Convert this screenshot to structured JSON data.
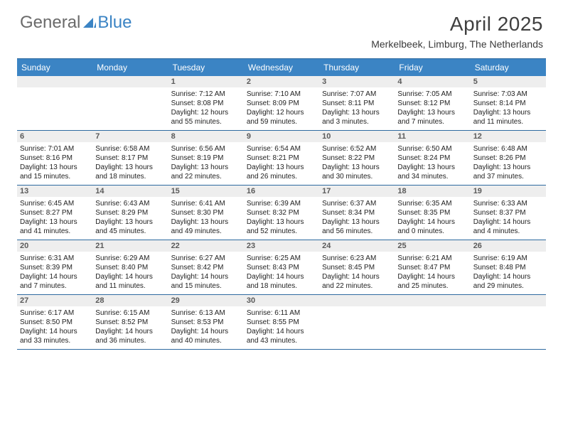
{
  "logo": {
    "general": "General",
    "blue": "Blue"
  },
  "title": "April 2025",
  "location": "Merkelbeek, Limburg, The Netherlands",
  "day_headers": [
    "Sunday",
    "Monday",
    "Tuesday",
    "Wednesday",
    "Thursday",
    "Friday",
    "Saturday"
  ],
  "colors": {
    "header_bg": "#3b84c4",
    "header_text": "#ffffff",
    "daynum_bg": "#eeeeee",
    "row_border": "#2e6aa0",
    "logo_grey": "#6a6a6a",
    "logo_blue": "#3b84c4",
    "title_color": "#404040"
  },
  "layout": {
    "weeks": 5,
    "days_per_week": 7,
    "cell_fontsize_pt": 8,
    "header_fontsize_pt": 9
  },
  "weeks": [
    [
      {
        "n": "",
        "sr": "",
        "ss": "",
        "dl": ""
      },
      {
        "n": "",
        "sr": "",
        "ss": "",
        "dl": ""
      },
      {
        "n": "1",
        "sr": "Sunrise: 7:12 AM",
        "ss": "Sunset: 8:08 PM",
        "dl": "Daylight: 12 hours and 55 minutes."
      },
      {
        "n": "2",
        "sr": "Sunrise: 7:10 AM",
        "ss": "Sunset: 8:09 PM",
        "dl": "Daylight: 12 hours and 59 minutes."
      },
      {
        "n": "3",
        "sr": "Sunrise: 7:07 AM",
        "ss": "Sunset: 8:11 PM",
        "dl": "Daylight: 13 hours and 3 minutes."
      },
      {
        "n": "4",
        "sr": "Sunrise: 7:05 AM",
        "ss": "Sunset: 8:12 PM",
        "dl": "Daylight: 13 hours and 7 minutes."
      },
      {
        "n": "5",
        "sr": "Sunrise: 7:03 AM",
        "ss": "Sunset: 8:14 PM",
        "dl": "Daylight: 13 hours and 11 minutes."
      }
    ],
    [
      {
        "n": "6",
        "sr": "Sunrise: 7:01 AM",
        "ss": "Sunset: 8:16 PM",
        "dl": "Daylight: 13 hours and 15 minutes."
      },
      {
        "n": "7",
        "sr": "Sunrise: 6:58 AM",
        "ss": "Sunset: 8:17 PM",
        "dl": "Daylight: 13 hours and 18 minutes."
      },
      {
        "n": "8",
        "sr": "Sunrise: 6:56 AM",
        "ss": "Sunset: 8:19 PM",
        "dl": "Daylight: 13 hours and 22 minutes."
      },
      {
        "n": "9",
        "sr": "Sunrise: 6:54 AM",
        "ss": "Sunset: 8:21 PM",
        "dl": "Daylight: 13 hours and 26 minutes."
      },
      {
        "n": "10",
        "sr": "Sunrise: 6:52 AM",
        "ss": "Sunset: 8:22 PM",
        "dl": "Daylight: 13 hours and 30 minutes."
      },
      {
        "n": "11",
        "sr": "Sunrise: 6:50 AM",
        "ss": "Sunset: 8:24 PM",
        "dl": "Daylight: 13 hours and 34 minutes."
      },
      {
        "n": "12",
        "sr": "Sunrise: 6:48 AM",
        "ss": "Sunset: 8:26 PM",
        "dl": "Daylight: 13 hours and 37 minutes."
      }
    ],
    [
      {
        "n": "13",
        "sr": "Sunrise: 6:45 AM",
        "ss": "Sunset: 8:27 PM",
        "dl": "Daylight: 13 hours and 41 minutes."
      },
      {
        "n": "14",
        "sr": "Sunrise: 6:43 AM",
        "ss": "Sunset: 8:29 PM",
        "dl": "Daylight: 13 hours and 45 minutes."
      },
      {
        "n": "15",
        "sr": "Sunrise: 6:41 AM",
        "ss": "Sunset: 8:30 PM",
        "dl": "Daylight: 13 hours and 49 minutes."
      },
      {
        "n": "16",
        "sr": "Sunrise: 6:39 AM",
        "ss": "Sunset: 8:32 PM",
        "dl": "Daylight: 13 hours and 52 minutes."
      },
      {
        "n": "17",
        "sr": "Sunrise: 6:37 AM",
        "ss": "Sunset: 8:34 PM",
        "dl": "Daylight: 13 hours and 56 minutes."
      },
      {
        "n": "18",
        "sr": "Sunrise: 6:35 AM",
        "ss": "Sunset: 8:35 PM",
        "dl": "Daylight: 14 hours and 0 minutes."
      },
      {
        "n": "19",
        "sr": "Sunrise: 6:33 AM",
        "ss": "Sunset: 8:37 PM",
        "dl": "Daylight: 14 hours and 4 minutes."
      }
    ],
    [
      {
        "n": "20",
        "sr": "Sunrise: 6:31 AM",
        "ss": "Sunset: 8:39 PM",
        "dl": "Daylight: 14 hours and 7 minutes."
      },
      {
        "n": "21",
        "sr": "Sunrise: 6:29 AM",
        "ss": "Sunset: 8:40 PM",
        "dl": "Daylight: 14 hours and 11 minutes."
      },
      {
        "n": "22",
        "sr": "Sunrise: 6:27 AM",
        "ss": "Sunset: 8:42 PM",
        "dl": "Daylight: 14 hours and 15 minutes."
      },
      {
        "n": "23",
        "sr": "Sunrise: 6:25 AM",
        "ss": "Sunset: 8:43 PM",
        "dl": "Daylight: 14 hours and 18 minutes."
      },
      {
        "n": "24",
        "sr": "Sunrise: 6:23 AM",
        "ss": "Sunset: 8:45 PM",
        "dl": "Daylight: 14 hours and 22 minutes."
      },
      {
        "n": "25",
        "sr": "Sunrise: 6:21 AM",
        "ss": "Sunset: 8:47 PM",
        "dl": "Daylight: 14 hours and 25 minutes."
      },
      {
        "n": "26",
        "sr": "Sunrise: 6:19 AM",
        "ss": "Sunset: 8:48 PM",
        "dl": "Daylight: 14 hours and 29 minutes."
      }
    ],
    [
      {
        "n": "27",
        "sr": "Sunrise: 6:17 AM",
        "ss": "Sunset: 8:50 PM",
        "dl": "Daylight: 14 hours and 33 minutes."
      },
      {
        "n": "28",
        "sr": "Sunrise: 6:15 AM",
        "ss": "Sunset: 8:52 PM",
        "dl": "Daylight: 14 hours and 36 minutes."
      },
      {
        "n": "29",
        "sr": "Sunrise: 6:13 AM",
        "ss": "Sunset: 8:53 PM",
        "dl": "Daylight: 14 hours and 40 minutes."
      },
      {
        "n": "30",
        "sr": "Sunrise: 6:11 AM",
        "ss": "Sunset: 8:55 PM",
        "dl": "Daylight: 14 hours and 43 minutes."
      },
      {
        "n": "",
        "sr": "",
        "ss": "",
        "dl": ""
      },
      {
        "n": "",
        "sr": "",
        "ss": "",
        "dl": ""
      },
      {
        "n": "",
        "sr": "",
        "ss": "",
        "dl": ""
      }
    ]
  ]
}
